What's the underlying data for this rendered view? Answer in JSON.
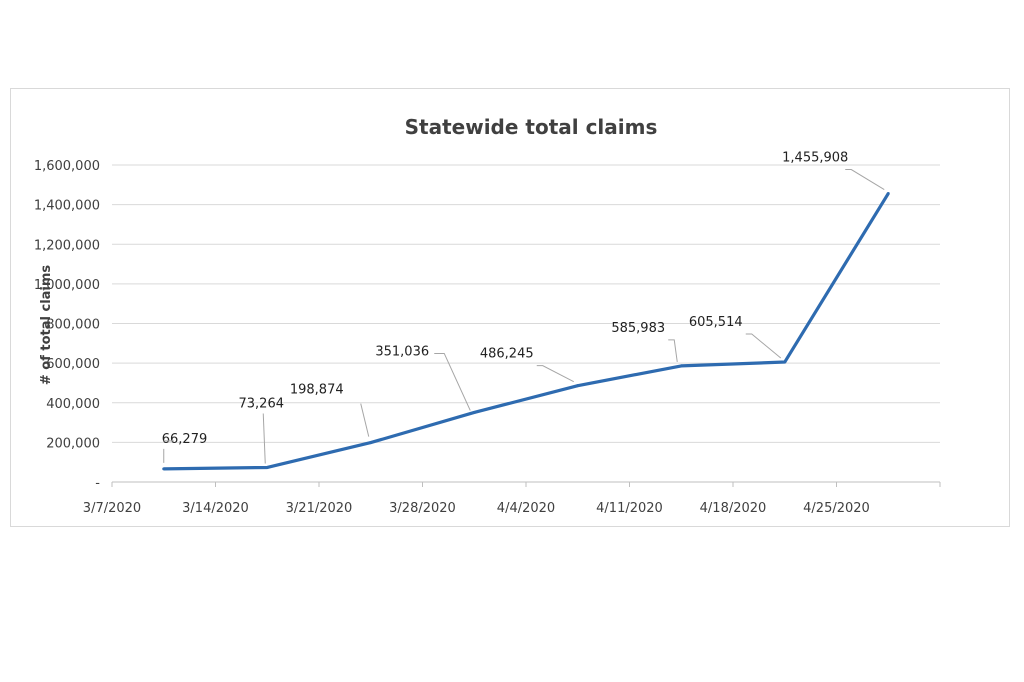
{
  "chart_data": {
    "type": "line",
    "title": "Statewide total claims",
    "xlabel": "",
    "ylabel": "# of total claims",
    "categories": [
      "3/7/2020",
      "3/14/2020",
      "3/21/2020",
      "3/28/2020",
      "4/4/2020",
      "4/11/2020",
      "4/18/2020",
      "4/25/2020"
    ],
    "values": [
      66279,
      73264,
      198874,
      351036,
      486245,
      585983,
      605514,
      1455908
    ],
    "data_labels": [
      "66,279",
      "73,264",
      "198,874",
      "351,036",
      "486,245",
      "585,983",
      "605,514",
      "1,455,908"
    ],
    "ylim": [
      0,
      1600000
    ],
    "yticks": [
      0,
      200000,
      400000,
      600000,
      800000,
      1000000,
      1200000,
      1400000,
      1600000
    ],
    "ytick_labels": [
      "-",
      "200,000",
      "400,000",
      "600,000",
      "800,000",
      "1,000,000",
      "1,200,000",
      "1,400,000",
      "1,600,000"
    ],
    "grid": true,
    "legend": "none",
    "colors": {
      "series": "#2e6bb0",
      "grid": "#d9d9d9",
      "text": "#404040"
    }
  }
}
